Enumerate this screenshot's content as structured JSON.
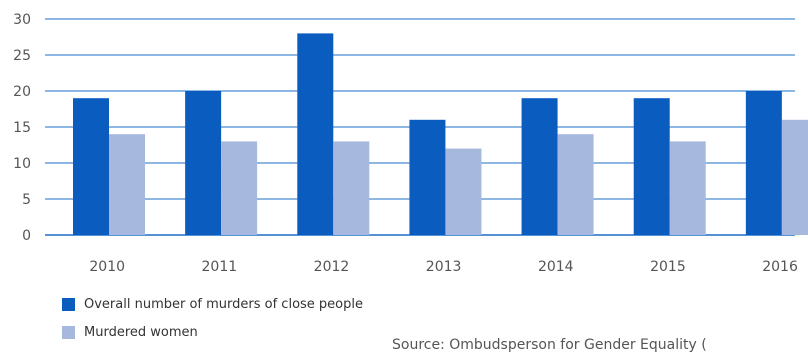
{
  "chart_data": {
    "type": "bar",
    "categories": [
      "2010",
      "2011",
      "2012",
      "2013",
      "2014",
      "2015",
      "2016"
    ],
    "series": [
      {
        "name": "Overall number of murders of close people",
        "color": "#0a5cbf",
        "values": [
          19,
          20,
          28,
          16,
          19,
          19,
          20
        ]
      },
      {
        "name": "Murdered women",
        "color": "#a6b8dd",
        "values": [
          14,
          13,
          13,
          12,
          14,
          13,
          16
        ]
      }
    ],
    "ylim": [
      0,
      30
    ],
    "yticks": [
      0,
      5,
      10,
      15,
      20,
      25,
      30
    ],
    "grid": true,
    "legend_position": "bottom-left",
    "source": "Source: Ombudsperson for Gender Equality (",
    "axis_color": "#1b6fc8"
  }
}
